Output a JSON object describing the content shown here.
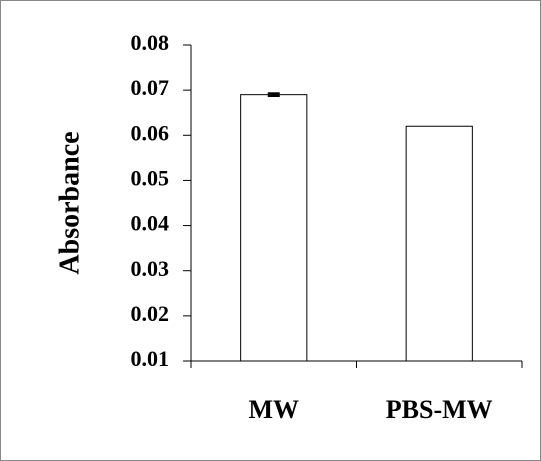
{
  "chart_data": {
    "type": "bar",
    "y_label": "Absorbance",
    "categories": [
      "MW",
      "PBS-MW"
    ],
    "values": [
      0.069,
      0.062
    ],
    "errors": [
      0.0003,
      null
    ],
    "color": "#ffffff",
    "edge_color": "#000000",
    "ylim": [
      0.01,
      0.08
    ],
    "yticks": [
      0.01,
      0.02,
      0.03,
      0.04,
      0.05,
      0.06,
      0.07,
      0.08
    ],
    "grid": false
  }
}
